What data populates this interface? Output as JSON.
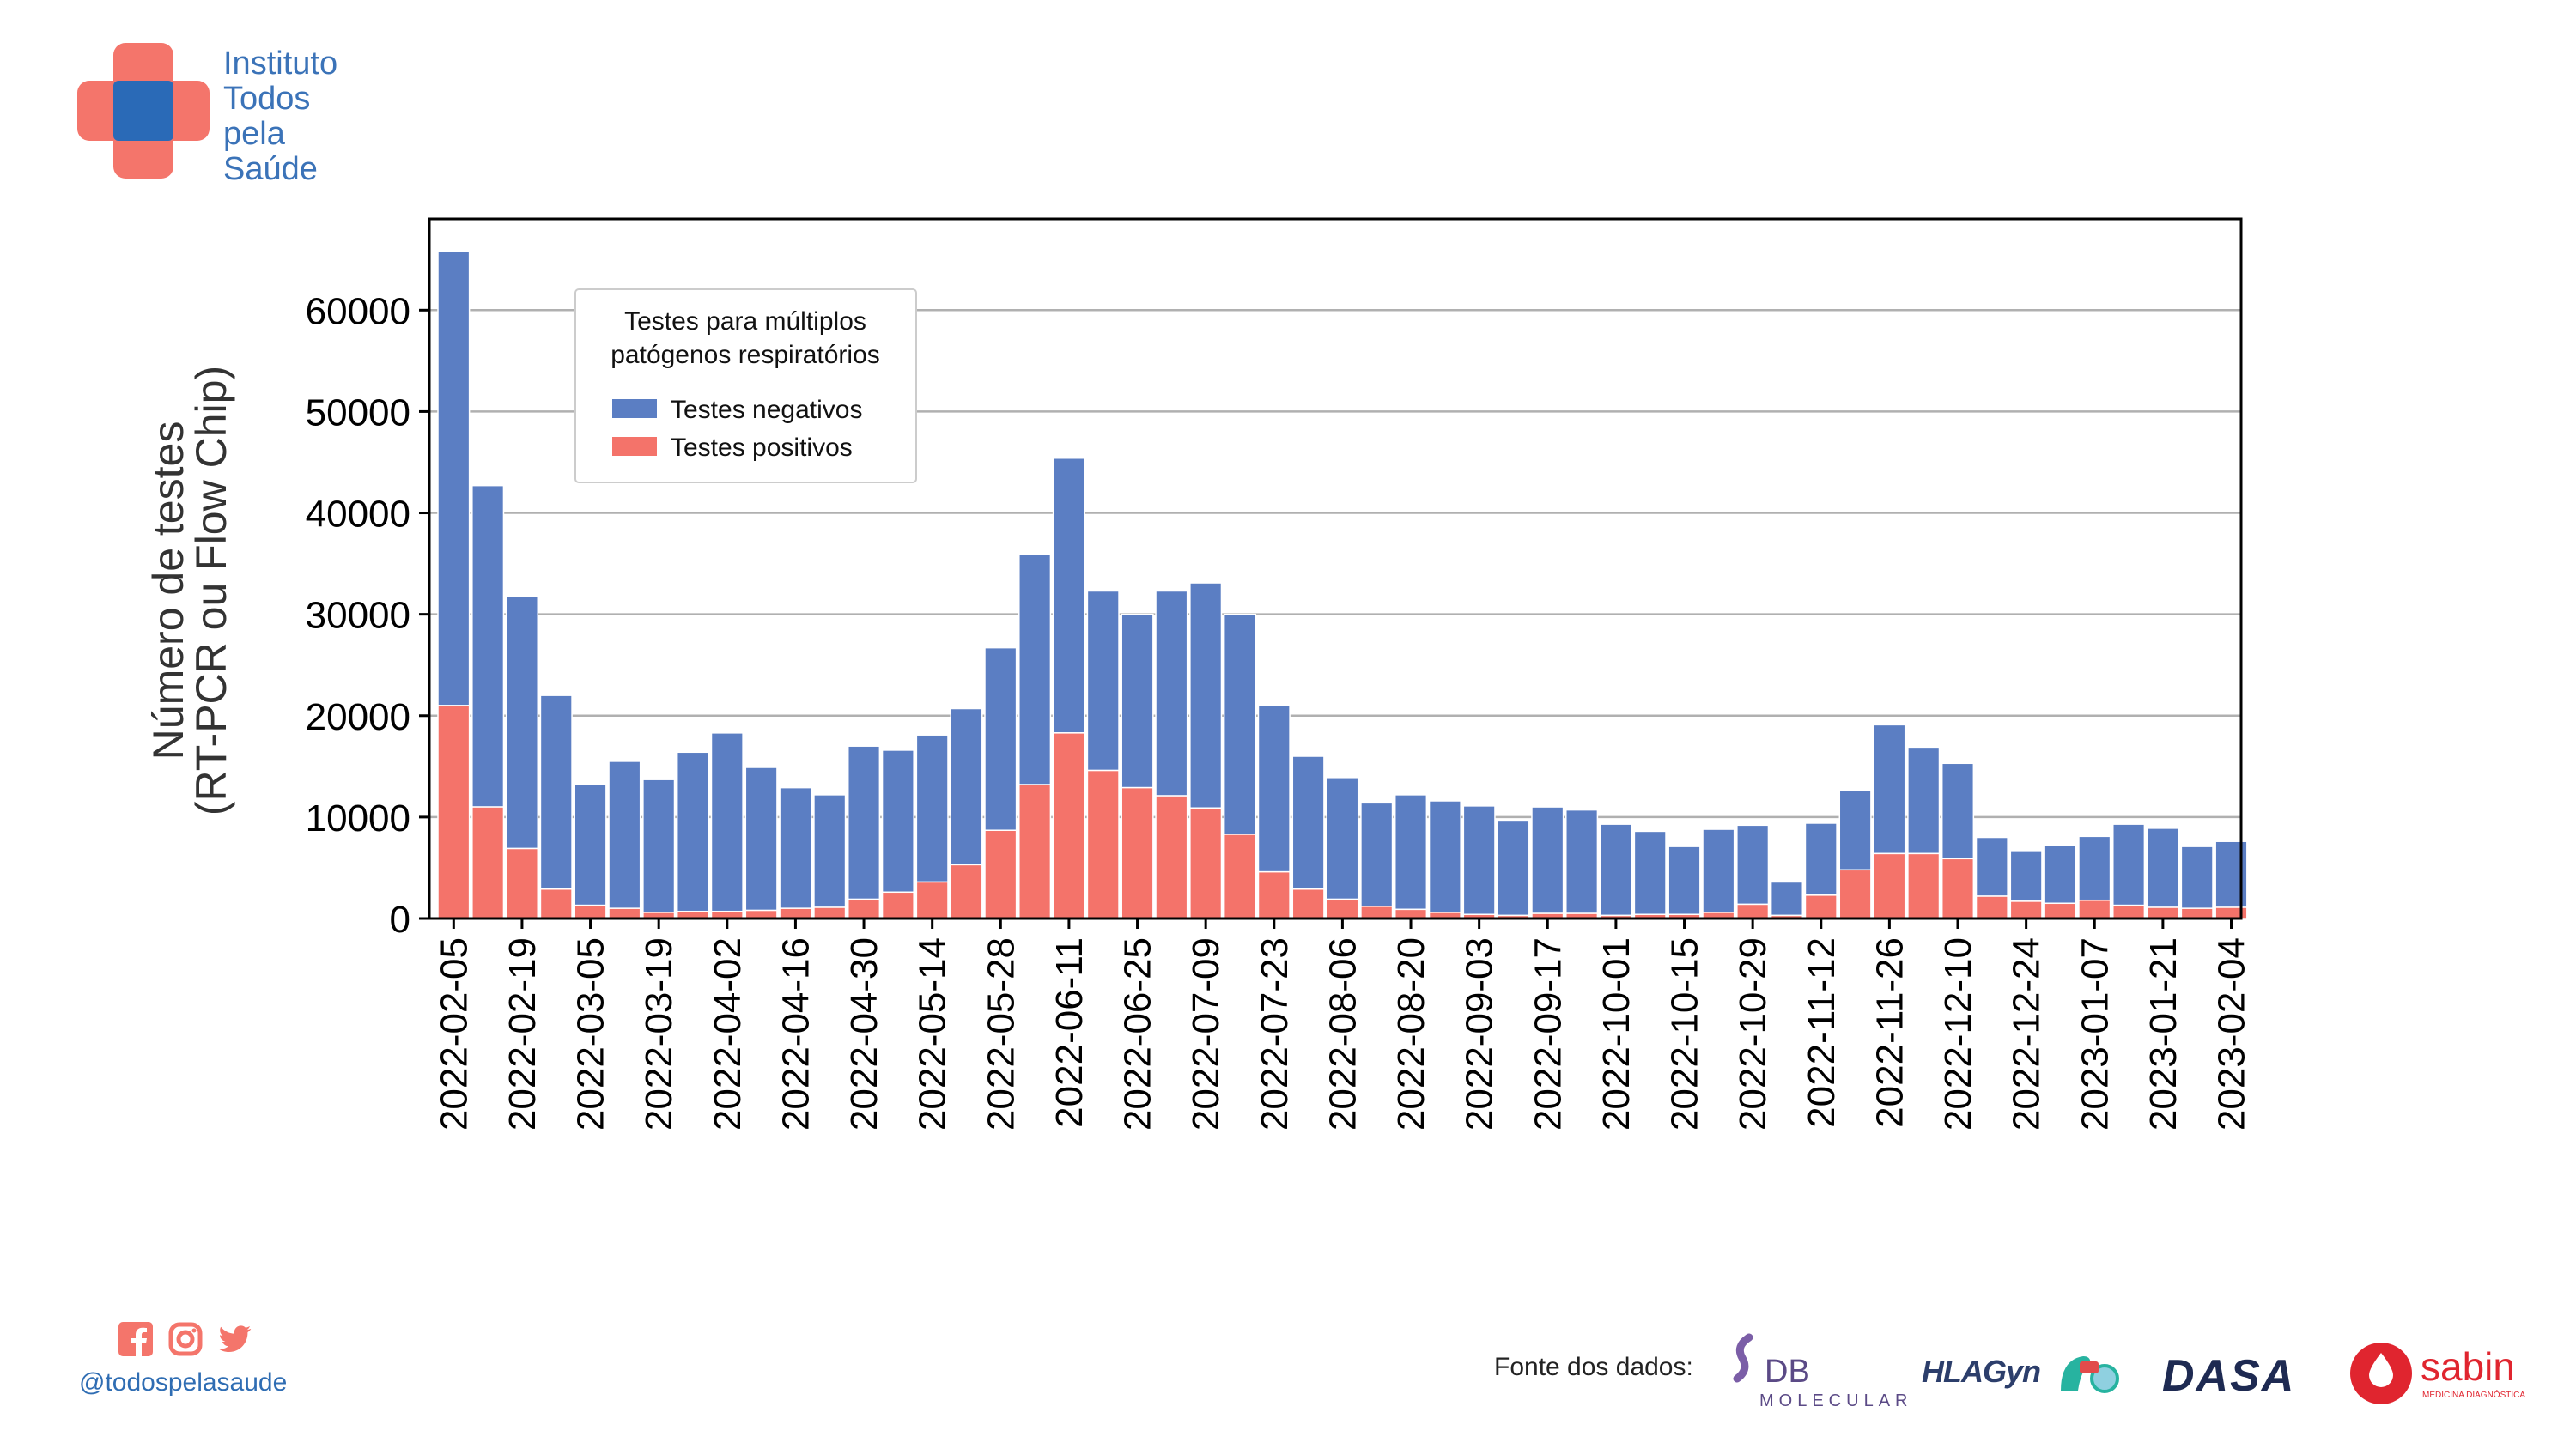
{
  "brand": {
    "name_lines": [
      "Instituto",
      "Todos",
      "pela",
      "Saúde"
    ],
    "handle": "@todospelasaude",
    "social_icons": [
      "facebook-icon",
      "instagram-icon",
      "twitter-icon"
    ],
    "colors": {
      "red": "#f4756b",
      "blue": "#2a6ab7",
      "text_blue": "#3b73b8"
    }
  },
  "footer": {
    "source_label": "Fonte dos dados:",
    "partners": [
      {
        "name": "DB",
        "sub": "MOLECULAR"
      },
      {
        "name": "HLAGyn"
      },
      {
        "name": "DASA"
      },
      {
        "name": "sabin",
        "sub": "MEDICINA DIAGNÓSTICA"
      }
    ]
  },
  "chart_data": {
    "type": "bar",
    "stacked": true,
    "ylabel_lines": [
      "Número de testes",
      "(RT-PCR ou Flow Chip)"
    ],
    "ylim": [
      0,
      69000
    ],
    "yticks": [
      0,
      10000,
      20000,
      30000,
      40000,
      50000,
      60000
    ],
    "grid": "horizontal",
    "legend": {
      "title_lines": [
        "Testes para múltiplos",
        "patógenos respiratórios"
      ],
      "placement": "upper-left"
    },
    "categories": [
      "2022-02-05",
      "2022-02-12",
      "2022-02-19",
      "2022-02-26",
      "2022-03-05",
      "2022-03-12",
      "2022-03-19",
      "2022-03-26",
      "2022-04-02",
      "2022-04-09",
      "2022-04-16",
      "2022-04-23",
      "2022-04-30",
      "2022-05-07",
      "2022-05-14",
      "2022-05-21",
      "2022-05-28",
      "2022-06-04",
      "2022-06-11",
      "2022-06-18",
      "2022-06-25",
      "2022-07-02",
      "2022-07-09",
      "2022-07-16",
      "2022-07-23",
      "2022-07-30",
      "2022-08-06",
      "2022-08-13",
      "2022-08-20",
      "2022-08-27",
      "2022-09-03",
      "2022-09-10",
      "2022-09-17",
      "2022-09-24",
      "2022-10-01",
      "2022-10-08",
      "2022-10-15",
      "2022-10-22",
      "2022-10-29",
      "2022-11-05",
      "2022-11-12",
      "2022-11-19",
      "2022-11-26",
      "2022-12-03",
      "2022-12-10",
      "2022-12-17",
      "2022-12-24",
      "2022-12-31",
      "2023-01-07",
      "2023-01-14",
      "2023-01-21",
      "2023-01-28",
      "2023-02-04"
    ],
    "tick_labels": [
      "2022-02-05",
      "2022-02-19",
      "2022-03-05",
      "2022-03-19",
      "2022-04-02",
      "2022-04-16",
      "2022-04-30",
      "2022-05-14",
      "2022-05-28",
      "2022-06-11",
      "2022-06-25",
      "2022-07-09",
      "2022-07-23",
      "2022-08-06",
      "2022-08-20",
      "2022-09-03",
      "2022-09-17",
      "2022-10-01",
      "2022-10-15",
      "2022-10-29",
      "2022-11-12",
      "2022-11-26",
      "2022-12-10",
      "2022-12-24",
      "2023-01-07",
      "2023-01-21",
      "2023-02-04"
    ],
    "series": [
      {
        "name": "Testes positivos",
        "color": "#f4736a",
        "values": [
          21000,
          11000,
          6900,
          2900,
          1300,
          1000,
          600,
          700,
          700,
          800,
          1000,
          1100,
          1900,
          2600,
          3600,
          5300,
          8700,
          13200,
          18300,
          14600,
          12900,
          12100,
          10900,
          8300,
          4600,
          2900,
          1900,
          1200,
          900,
          600,
          400,
          300,
          500,
          500,
          300,
          400,
          400,
          600,
          1400,
          300,
          2300,
          4800,
          6400,
          6400,
          5900,
          2200,
          1700,
          1500,
          1800,
          1300,
          1100,
          1000,
          1100
        ]
      },
      {
        "name": "Testes negativos",
        "color": "#5b7ec3",
        "values": [
          44800,
          31700,
          24900,
          19100,
          11900,
          14500,
          13100,
          15700,
          17600,
          14100,
          11900,
          11100,
          15100,
          14000,
          14500,
          15400,
          18000,
          22700,
          27100,
          17700,
          17100,
          20200,
          22200,
          21700,
          16400,
          13100,
          12000,
          10200,
          11300,
          11000,
          10700,
          9400,
          10500,
          10200,
          9000,
          8200,
          6700,
          8200,
          7800,
          3300,
          7100,
          7800,
          12700,
          10500,
          9400,
          5800,
          5000,
          5700,
          6300,
          8000,
          7800,
          6100,
          6500
        ]
      }
    ]
  }
}
